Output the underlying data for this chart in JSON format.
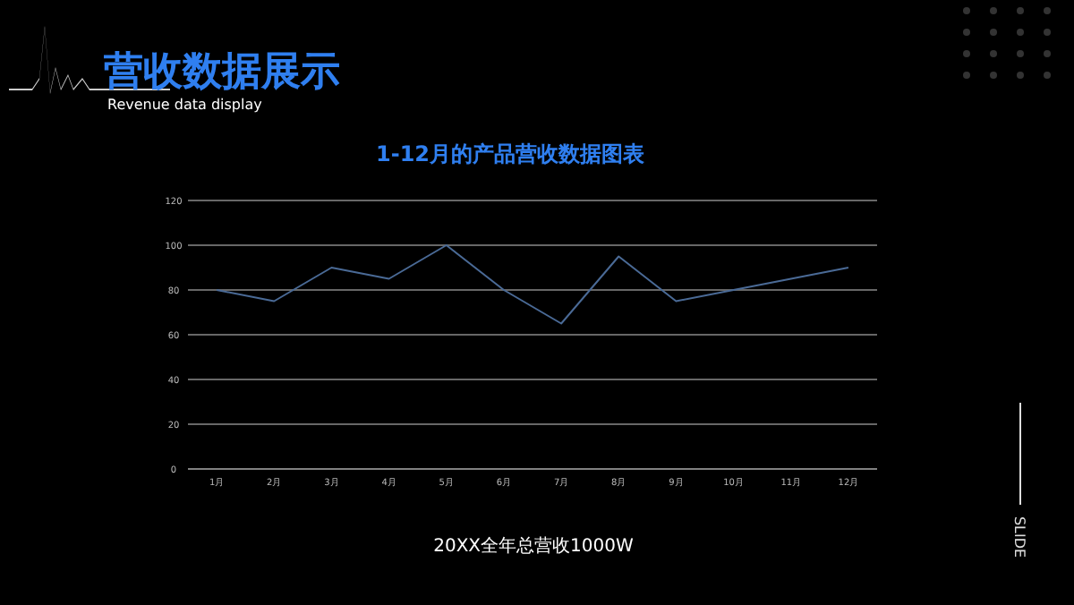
{
  "chart_data": {
    "type": "line",
    "title": "1-12月的产品营收数据图表",
    "categories": [
      "1月",
      "2月",
      "3月",
      "4月",
      "5月",
      "6月",
      "7月",
      "8月",
      "9月",
      "10月",
      "11月",
      "12月"
    ],
    "series": [
      {
        "color": "#4a6a96",
        "values": [
          80,
          75,
          90,
          85,
          100,
          80,
          65,
          95,
          75,
          80,
          85,
          90
        ]
      }
    ],
    "ylim": [
      0,
      120
    ],
    "yticks": [
      0,
      20,
      40,
      60,
      80,
      100,
      120
    ],
    "grid": "y",
    "marker": "none",
    "line_style": "solid",
    "annotations": [
      "营收数据展示",
      "Revenue data display",
      "20XX全年总营收1000W",
      "SLIDE"
    ]
  }
}
